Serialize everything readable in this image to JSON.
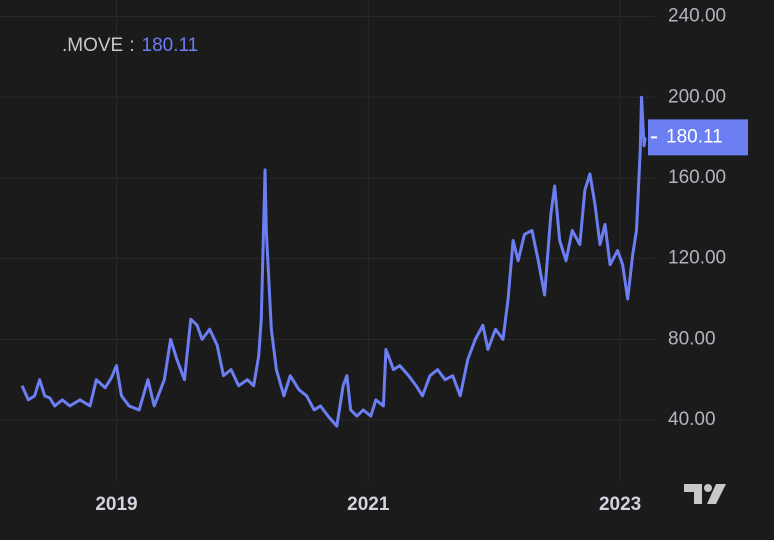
{
  "chart_data": {
    "type": "line",
    "series": [
      {
        "name": ".MOVE",
        "color": "#6b7ef2",
        "x": [
          2018.25,
          2018.3,
          2018.35,
          2018.39,
          2018.43,
          2018.47,
          2018.51,
          2018.57,
          2018.63,
          2018.71,
          2018.79,
          2018.84,
          2018.91,
          2018.96,
          2019.0,
          2019.04,
          2019.1,
          2019.18,
          2019.25,
          2019.3,
          2019.38,
          2019.43,
          2019.48,
          2019.54,
          2019.59,
          2019.64,
          2019.68,
          2019.74,
          2019.8,
          2019.85,
          2019.91,
          2019.97,
          2020.04,
          2020.09,
          2020.13,
          2020.15,
          2020.18,
          2020.19,
          2020.23,
          2020.27,
          2020.33,
          2020.38,
          2020.45,
          2020.51,
          2020.57,
          2020.62,
          2020.68,
          2020.75,
          2020.8,
          2020.83,
          2020.86,
          2020.91,
          2020.96,
          2021.02,
          2021.06,
          2021.12,
          2021.14,
          2021.2,
          2021.25,
          2021.32,
          2021.38,
          2021.43,
          2021.49,
          2021.55,
          2021.61,
          2021.67,
          2021.73,
          2021.79,
          2021.85,
          2021.91,
          2021.95,
          2022.01,
          2022.07,
          2022.11,
          2022.15,
          2022.19,
          2022.24,
          2022.3,
          2022.35,
          2022.4,
          2022.45,
          2022.48,
          2022.52,
          2022.57,
          2022.62,
          2022.68,
          2022.72,
          2022.76,
          2022.8,
          2022.84,
          2022.88,
          2022.92,
          2022.98,
          2023.02,
          2023.06,
          2023.1,
          2023.13,
          2023.16,
          2023.17,
          2023.19,
          2023.2
        ],
        "values": [
          57,
          50,
          52,
          60,
          52,
          51,
          47,
          50,
          47,
          50,
          47,
          60,
          56,
          61,
          67,
          52,
          47,
          45,
          60,
          47,
          60,
          80,
          70,
          60,
          90,
          87,
          80,
          85,
          77,
          62,
          65,
          57,
          60,
          57,
          72,
          90,
          164,
          134,
          85,
          65,
          52,
          62,
          55,
          52,
          45,
          47,
          42,
          37,
          57,
          62,
          45,
          42,
          45,
          42,
          50,
          47,
          75,
          65,
          67,
          62,
          57,
          52,
          62,
          65,
          60,
          62,
          52,
          70,
          80,
          87,
          75,
          85,
          80,
          100,
          129,
          119,
          132,
          134,
          119,
          102,
          142,
          156,
          129,
          119,
          134,
          127,
          154,
          162,
          147,
          127,
          137,
          117,
          124,
          117,
          100,
          122,
          134,
          174,
          200,
          176,
          180.11
        ]
      }
    ],
    "legend_separator": ":",
    "xlim": [
      2018.075,
      2023.277
    ],
    "xticks": [
      2019,
      2021,
      2023
    ],
    "ylim": [
      9.3,
      248.2
    ],
    "yticks": [
      {
        "value": 40,
        "label": "40.00"
      },
      {
        "value": 80,
        "label": "80.00"
      },
      {
        "value": 120,
        "label": "120.00"
      },
      {
        "value": 160,
        "label": "160.00"
      },
      {
        "value": 200,
        "label": "200.00"
      },
      {
        "value": 240,
        "label": "240.00"
      }
    ],
    "grid": true
  }
}
